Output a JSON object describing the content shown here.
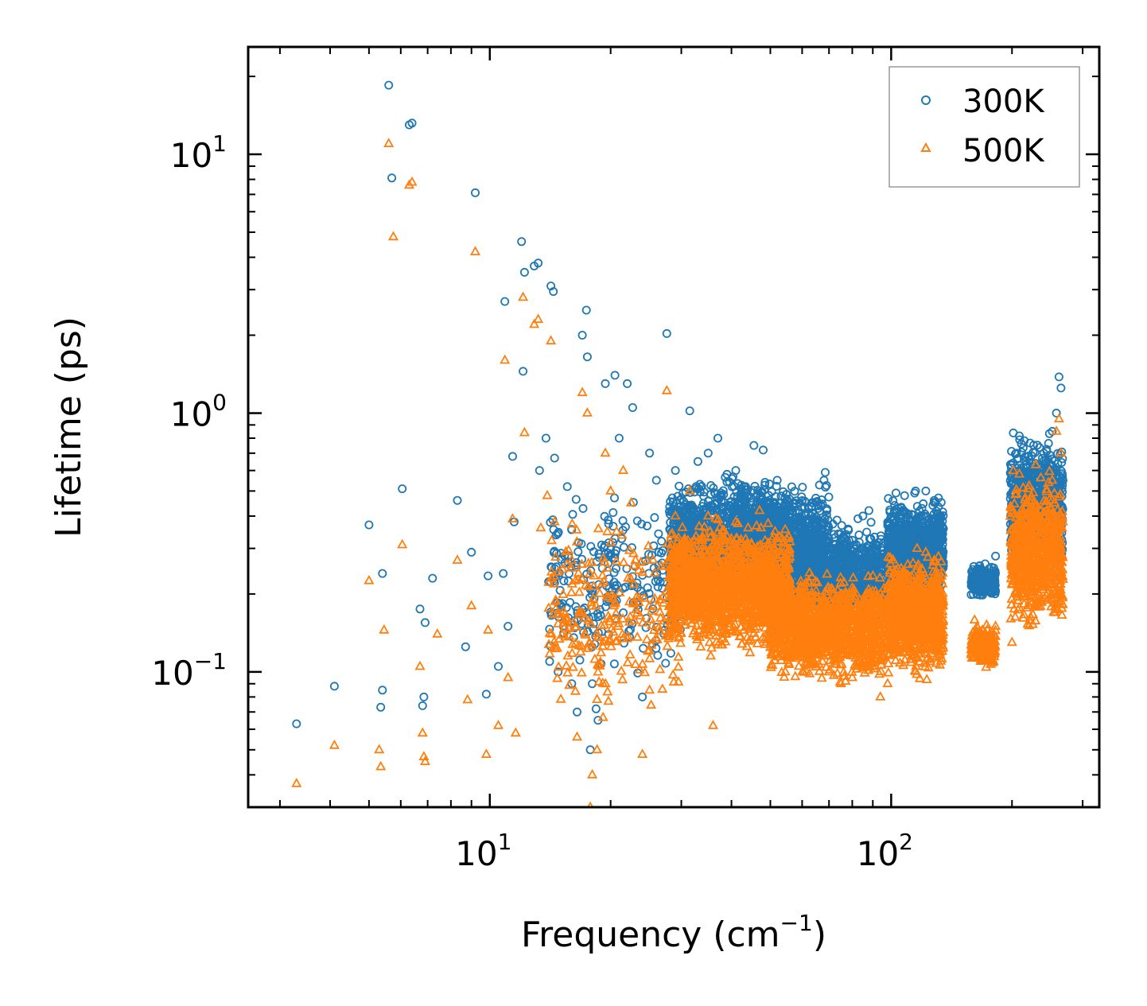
{
  "chart_data": {
    "type": "scatter",
    "xscale": "log",
    "yscale": "log",
    "xlim": [
      2.5,
      330
    ],
    "ylim": [
      0.03,
      26
    ],
    "xlabel_main": "Frequency (cm",
    "xlabel_sup": "−1",
    "xlabel_tail": ")",
    "ylabel": "Lifetime (ps)",
    "xticks": [
      {
        "value": 10,
        "base": "10",
        "exp": "1"
      },
      {
        "value": 100,
        "base": "10",
        "exp": "2"
      }
    ],
    "yticks": [
      {
        "value": 0.1,
        "base": "10",
        "exp": "−1"
      },
      {
        "value": 1,
        "base": "10",
        "exp": "0"
      },
      {
        "value": 10,
        "base": "10",
        "exp": "1"
      }
    ],
    "legend_position": "top-right",
    "series": [
      {
        "name": "300K",
        "marker": "circle",
        "color": "#1f77b4",
        "points": [
          [
            3.3,
            0.063
          ],
          [
            4.1,
            0.088
          ],
          [
            5.0,
            0.37
          ],
          [
            5.4,
            0.24
          ],
          [
            5.4,
            0.085
          ],
          [
            5.35,
            0.073
          ],
          [
            5.6,
            18.5
          ],
          [
            5.7,
            8.1
          ],
          [
            6.05,
            0.51
          ],
          [
            6.3,
            13.0
          ],
          [
            6.4,
            13.2
          ],
          [
            6.7,
            0.175
          ],
          [
            6.8,
            0.074
          ],
          [
            6.85,
            0.08
          ],
          [
            6.9,
            0.155
          ],
          [
            7.2,
            0.23
          ],
          [
            8.3,
            0.46
          ],
          [
            8.7,
            0.125
          ],
          [
            9.0,
            0.29
          ],
          [
            9.2,
            7.1
          ],
          [
            9.8,
            0.082
          ],
          [
            9.9,
            0.235
          ],
          [
            10.5,
            0.105
          ],
          [
            10.8,
            0.24
          ],
          [
            10.9,
            2.7
          ],
          [
            11.1,
            0.15
          ],
          [
            11.4,
            0.68
          ],
          [
            11.5,
            0.38
          ],
          [
            12.0,
            4.6
          ],
          [
            12.1,
            1.45
          ],
          [
            12.2,
            3.5
          ],
          [
            12.9,
            3.7
          ],
          [
            13.2,
            3.8
          ],
          [
            13.3,
            0.6
          ],
          [
            13.8,
            0.8
          ],
          [
            14.2,
            3.1
          ],
          [
            14.4,
            2.95
          ],
          [
            14.5,
            0.67
          ],
          [
            14.8,
            0.1
          ],
          [
            15.6,
            0.52
          ],
          [
            16.0,
            0.09
          ],
          [
            16.5,
            0.07
          ],
          [
            17.0,
            2.0
          ],
          [
            17.4,
            2.5
          ],
          [
            17.5,
            1.65
          ],
          [
            17.8,
            0.05
          ],
          [
            18.0,
            0.09
          ],
          [
            18.4,
            0.072
          ],
          [
            18.6,
            0.065
          ],
          [
            19.4,
            1.3
          ],
          [
            20.5,
            1.4
          ],
          [
            21.0,
            0.8
          ],
          [
            22.0,
            1.3
          ],
          [
            22.7,
            1.05
          ],
          [
            24.0,
            0.08
          ],
          [
            25.0,
            0.7
          ],
          [
            26.0,
            0.55
          ],
          [
            27.6,
            2.03
          ],
          [
            29.0,
            0.6
          ],
          [
            31.5,
            1.02
          ],
          [
            33.0,
            0.65
          ],
          [
            35.0,
            0.7
          ],
          [
            37.0,
            0.8
          ],
          [
            39.0,
            0.58
          ],
          [
            41.0,
            0.6
          ],
          [
            43.0,
            0.52
          ],
          [
            45.5,
            0.75
          ],
          [
            48.0,
            0.72
          ],
          [
            52.0,
            0.55
          ],
          [
            56.0,
            0.42
          ],
          [
            60.0,
            0.35
          ],
          [
            64.0,
            0.38
          ],
          [
            68.0,
            0.55
          ],
          [
            68.5,
            0.59
          ],
          [
            72.0,
            0.3
          ],
          [
            76.0,
            0.22
          ],
          [
            80.0,
            0.25
          ],
          [
            85.0,
            0.4
          ],
          [
            88.0,
            0.42
          ],
          [
            92.0,
            0.3
          ],
          [
            95.0,
            0.2
          ],
          [
            102.0,
            0.44
          ],
          [
            108.0,
            0.48
          ],
          [
            115.0,
            0.5
          ],
          [
            122.0,
            0.5
          ],
          [
            128.0,
            0.46
          ],
          [
            133.0,
            0.4
          ],
          [
            160.0,
            0.22
          ],
          [
            168.0,
            0.2
          ],
          [
            176.0,
            0.24
          ],
          [
            182.0,
            0.28
          ],
          [
            200.0,
            0.35
          ],
          [
            208.0,
            0.32
          ],
          [
            215.0,
            0.44
          ],
          [
            222.0,
            0.55
          ],
          [
            230.0,
            0.6
          ],
          [
            240.0,
            0.7
          ],
          [
            252.0,
            0.85
          ],
          [
            258.0,
            1.0
          ],
          [
            262.0,
            1.38
          ],
          [
            265.0,
            1.25
          ]
        ]
      },
      {
        "name": "500K",
        "marker": "triangle",
        "color": "#ff7f0e",
        "points": [
          [
            3.3,
            0.037
          ],
          [
            4.1,
            0.052
          ],
          [
            5.0,
            0.225
          ],
          [
            5.3,
            0.05
          ],
          [
            5.35,
            0.043
          ],
          [
            5.45,
            0.145
          ],
          [
            5.6,
            11.0
          ],
          [
            5.75,
            4.8
          ],
          [
            6.05,
            0.31
          ],
          [
            6.3,
            7.6
          ],
          [
            6.4,
            7.8
          ],
          [
            6.7,
            0.105
          ],
          [
            6.8,
            0.058
          ],
          [
            6.85,
            0.047
          ],
          [
            6.9,
            0.045
          ],
          [
            7.4,
            0.14
          ],
          [
            8.3,
            0.27
          ],
          [
            8.8,
            0.078
          ],
          [
            9.0,
            0.18
          ],
          [
            9.2,
            4.2
          ],
          [
            9.8,
            0.048
          ],
          [
            9.9,
            0.145
          ],
          [
            10.5,
            0.062
          ],
          [
            10.9,
            1.6
          ],
          [
            11.1,
            0.095
          ],
          [
            11.4,
            0.39
          ],
          [
            11.6,
            0.058
          ],
          [
            12.1,
            2.8
          ],
          [
            12.2,
            0.84
          ],
          [
            12.9,
            2.2
          ],
          [
            13.2,
            2.3
          ],
          [
            13.4,
            0.36
          ],
          [
            13.9,
            0.48
          ],
          [
            14.2,
            1.9
          ],
          [
            14.5,
            0.38
          ],
          [
            15.5,
            0.16
          ],
          [
            16.0,
            0.27
          ],
          [
            16.5,
            0.056
          ],
          [
            17.0,
            1.2
          ],
          [
            17.5,
            1.0
          ],
          [
            17.8,
            0.03
          ],
          [
            18.0,
            0.04
          ],
          [
            18.5,
            0.05
          ],
          [
            19.4,
            0.7
          ],
          [
            20.0,
            0.5
          ],
          [
            21.5,
            0.6
          ],
          [
            22.5,
            0.45
          ],
          [
            24.0,
            0.048
          ],
          [
            25.0,
            0.085
          ],
          [
            27.6,
            1.22
          ],
          [
            29.0,
            0.4
          ],
          [
            31.5,
            0.5
          ],
          [
            35.0,
            0.4
          ],
          [
            36.0,
            0.062
          ],
          [
            38.0,
            0.35
          ],
          [
            41.0,
            0.38
          ],
          [
            44.0,
            0.36
          ],
          [
            47.0,
            0.42
          ],
          [
            50.0,
            0.3
          ],
          [
            54.0,
            0.25
          ],
          [
            58.0,
            0.2
          ],
          [
            62.0,
            0.15
          ],
          [
            66.0,
            0.12
          ],
          [
            70.0,
            0.1
          ],
          [
            75.0,
            0.09
          ],
          [
            80.0,
            0.095
          ],
          [
            86.0,
            0.11
          ],
          [
            90.0,
            0.13
          ],
          [
            94.0,
            0.08
          ],
          [
            98.0,
            0.09
          ],
          [
            104.0,
            0.22
          ],
          [
            110.0,
            0.26
          ],
          [
            116.0,
            0.3
          ],
          [
            122.0,
            0.29
          ],
          [
            128.0,
            0.27
          ],
          [
            133.0,
            0.11
          ],
          [
            160.0,
            0.13
          ],
          [
            168.0,
            0.11
          ],
          [
            176.0,
            0.14
          ],
          [
            182.0,
            0.15
          ],
          [
            200.0,
            0.13
          ],
          [
            208.0,
            0.2
          ],
          [
            215.0,
            0.23
          ],
          [
            222.0,
            0.3
          ],
          [
            230.0,
            0.33
          ],
          [
            240.0,
            0.4
          ],
          [
            252.0,
            0.55
          ],
          [
            258.0,
            0.85
          ],
          [
            262.0,
            0.95
          ],
          [
            265.0,
            0.7
          ]
        ]
      }
    ],
    "clouds": [
      {
        "series": 0,
        "fmin": 28,
        "fmax": 56,
        "ymin": 0.16,
        "ymax": 0.62,
        "n": 1400
      },
      {
        "series": 0,
        "fmin": 40,
        "fmax": 70,
        "ymin": 0.2,
        "ymax": 0.58,
        "n": 700
      },
      {
        "series": 0,
        "fmin": 56,
        "fmax": 96,
        "ymin": 0.14,
        "ymax": 0.42,
        "n": 900
      },
      {
        "series": 0,
        "fmin": 98,
        "fmax": 135,
        "ymin": 0.18,
        "ymax": 0.5,
        "n": 900
      },
      {
        "series": 0,
        "fmin": 158,
        "fmax": 182,
        "ymin": 0.19,
        "ymax": 0.27,
        "n": 250
      },
      {
        "series": 0,
        "fmin": 198,
        "fmax": 268,
        "ymin": 0.22,
        "ymax": 0.9,
        "n": 700
      },
      {
        "series": 0,
        "fmin": 14,
        "fmax": 30,
        "ymin": 0.08,
        "ymax": 0.6,
        "n": 260
      },
      {
        "series": 1,
        "fmin": 28,
        "fmax": 56,
        "ymin": 0.11,
        "ymax": 0.42,
        "n": 1500
      },
      {
        "series": 1,
        "fmin": 50,
        "fmax": 96,
        "ymin": 0.085,
        "ymax": 0.26,
        "n": 1300
      },
      {
        "series": 1,
        "fmin": 98,
        "fmax": 135,
        "ymin": 0.09,
        "ymax": 0.3,
        "n": 900
      },
      {
        "series": 1,
        "fmin": 158,
        "fmax": 182,
        "ymin": 0.1,
        "ymax": 0.16,
        "n": 250
      },
      {
        "series": 1,
        "fmin": 198,
        "fmax": 268,
        "ymin": 0.13,
        "ymax": 0.65,
        "n": 700
      },
      {
        "series": 1,
        "fmin": 14,
        "fmax": 30,
        "ymin": 0.06,
        "ymax": 0.45,
        "n": 260
      }
    ]
  }
}
